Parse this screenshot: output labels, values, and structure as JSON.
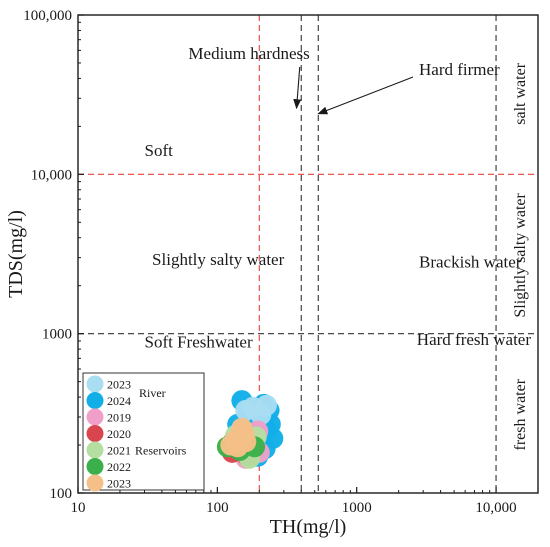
{
  "chart_data": {
    "type": "scatter",
    "xlabel": "TH(mg/l)",
    "ylabel": "TDS(mg/l)",
    "x_scale": "log",
    "y_scale": "log",
    "xlim": [
      10,
      20000
    ],
    "ylim": [
      100,
      100000
    ],
    "x_ticks": [
      {
        "value": 10,
        "label": "10"
      },
      {
        "value": 100,
        "label": "100"
      },
      {
        "value": 1000,
        "label": "1000"
      },
      {
        "value": 10000,
        "label": "10,000"
      }
    ],
    "y_ticks": [
      {
        "value": 100,
        "label": "100"
      },
      {
        "value": 1000,
        "label": "1000"
      },
      {
        "value": 10000,
        "label": "10,000"
      },
      {
        "value": 100000,
        "label": "100,000"
      }
    ],
    "reference_lines": [
      {
        "axis": "x",
        "value": 200,
        "color": "#e8403a"
      },
      {
        "axis": "x",
        "value": 400,
        "color": "#333333"
      },
      {
        "axis": "x",
        "value": 530,
        "color": "#333333"
      },
      {
        "axis": "x",
        "value": 10000,
        "color": "#333333"
      },
      {
        "axis": "y",
        "value": 10000,
        "color": "#e8403a"
      },
      {
        "axis": "y",
        "value": 1000,
        "color": "#333333"
      }
    ],
    "region_labels": [
      {
        "text": "Soft",
        "x": 30,
        "y": 13000
      },
      {
        "text": "Slightly salty water",
        "x": 34,
        "y": 2700
      },
      {
        "text": "Soft Freshwater",
        "x": 30,
        "y": 820
      },
      {
        "text": "Brackish water",
        "x": 2800,
        "y": 2600
      },
      {
        "text": "Hard fresh water",
        "x": 2700,
        "y": 850
      }
    ],
    "rotated_labels": [
      {
        "text": "salt water",
        "x": 15000,
        "y": 32000
      },
      {
        "text": "Slightly salty water",
        "x": 15000,
        "y": 3100
      },
      {
        "text": "fresh water",
        "x": 15000,
        "y": 310
      }
    ],
    "annotations": [
      {
        "text": "Medium hardness",
        "tx": 62,
        "ty": 53000,
        "ax": 370,
        "ay": 26000
      },
      {
        "text": "Hard firmer",
        "tx": 2800,
        "ty": 42000,
        "ax": 530,
        "ay": 24000
      }
    ],
    "legend": {
      "position": "bottom-left inside",
      "groups": [
        {
          "name": "River",
          "entries": [
            {
              "label": "2023",
              "color": "#a8ddf2"
            },
            {
              "label": "2024",
              "color": "#12aee8"
            }
          ]
        },
        {
          "name": "Reservoirs",
          "entries": [
            {
              "label": "2019",
              "color": "#f0a0c8"
            },
            {
              "label": "2020",
              "color": "#d9454f"
            },
            {
              "label": "2021",
              "color": "#b5dfa0"
            },
            {
              "label": "2022",
              "color": "#3bb04a"
            },
            {
              "label": "2023",
              "color": "#f5c088"
            }
          ]
        }
      ]
    },
    "series": [
      {
        "color": "#12aee8",
        "points": [
          [
            150,
            380
          ],
          [
            175,
            330
          ],
          [
            215,
            360
          ],
          [
            235,
            330
          ],
          [
            165,
            300
          ],
          [
            205,
            290
          ],
          [
            140,
            270
          ],
          [
            185,
            250
          ],
          [
            225,
            250
          ],
          [
            160,
            230
          ],
          [
            200,
            215
          ],
          [
            250,
            220
          ],
          [
            130,
            210
          ],
          [
            175,
            195
          ],
          [
            220,
            190
          ],
          [
            155,
            180
          ],
          [
            195,
            170
          ],
          [
            240,
            270
          ],
          [
            145,
            240
          ],
          [
            210,
            245
          ]
        ]
      },
      {
        "color": "#a8ddf2",
        "points": [
          [
            225,
            355
          ],
          [
            180,
            345
          ],
          [
            205,
            310
          ],
          [
            160,
            330
          ]
        ]
      },
      {
        "color": "#f0a0c8",
        "points": [
          [
            150,
            240
          ],
          [
            195,
            245
          ],
          [
            160,
            165
          ],
          [
            135,
            190
          ],
          [
            200,
            180
          ]
        ]
      },
      {
        "color": "#d9454f",
        "points": [
          [
            128,
            180
          ],
          [
            165,
            170
          ]
        ]
      },
      {
        "color": "#b5dfa0",
        "points": [
          [
            150,
            215
          ],
          [
            175,
            200
          ],
          [
            190,
            225
          ],
          [
            135,
            230
          ],
          [
            170,
            165
          ]
        ]
      },
      {
        "color": "#3bb04a",
        "points": [
          [
            118,
            195
          ],
          [
            145,
            185
          ],
          [
            185,
            195
          ]
        ]
      },
      {
        "color": "#f5c088",
        "points": [
          [
            150,
            255
          ],
          [
            135,
            215
          ],
          [
            160,
            210
          ],
          [
            125,
            200
          ],
          [
            155,
            235
          ],
          [
            140,
            195
          ]
        ]
      }
    ]
  }
}
